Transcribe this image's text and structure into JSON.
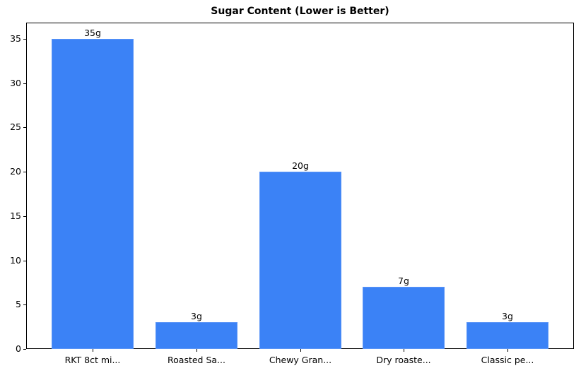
{
  "chart_data": {
    "type": "bar",
    "title": "Sugar Content (Lower is Better)",
    "xlabel": "",
    "ylabel": "",
    "categories": [
      "RKT 8ct mi...",
      "Roasted Sa...",
      "Chewy Gran...",
      "Dry roaste...",
      "Classic pe..."
    ],
    "values": [
      35,
      3,
      20,
      7,
      3
    ],
    "data_labels": [
      "35g",
      "3g",
      "20g",
      "7g",
      "3g"
    ],
    "yticks": [
      0,
      5,
      10,
      15,
      20,
      25,
      30,
      35
    ],
    "ylim": [
      0,
      36.75
    ],
    "grid": false,
    "legend": null,
    "bar_color": "#3b82f6"
  }
}
